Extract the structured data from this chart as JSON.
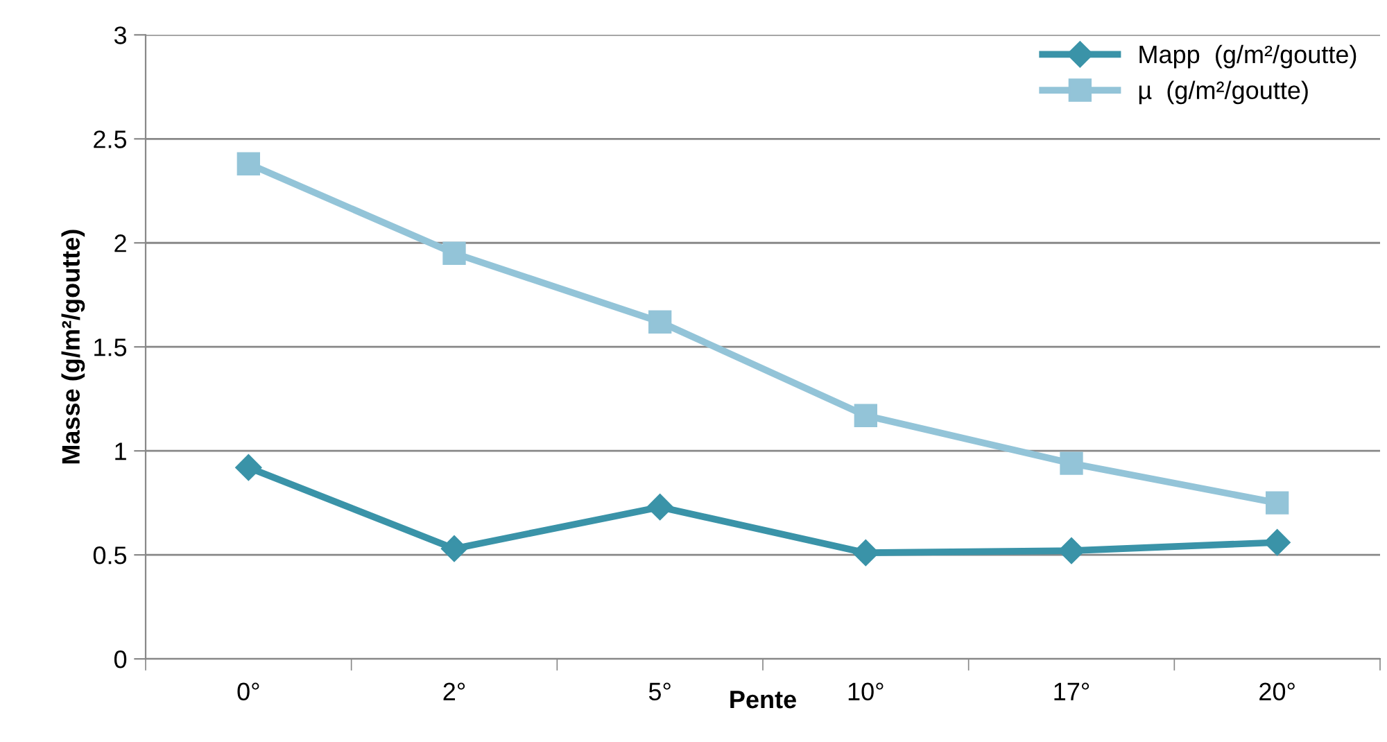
{
  "chart_data": {
    "type": "line",
    "xlabel": "Pente",
    "ylabel": "Masse (g/m²/goutte)",
    "categories": [
      "0°",
      "2°",
      "5°",
      "10°",
      "17°",
      "20°"
    ],
    "series": [
      {
        "name": "Mapp  (g/m²/goutte)",
        "color": "#3a93a8",
        "marker": "diamond",
        "values": [
          0.92,
          0.53,
          0.73,
          0.51,
          0.52,
          0.56
        ]
      },
      {
        "name": "µ  (g/m²/goutte)",
        "color": "#93c4d8",
        "marker": "square",
        "values": [
          2.38,
          1.95,
          1.62,
          1.17,
          0.94,
          0.75
        ]
      }
    ],
    "ylim": [
      0,
      3
    ],
    "yticks": [
      0,
      0.5,
      1,
      1.5,
      2,
      2.5,
      3
    ],
    "grid": "y",
    "legend": "top right",
    "line_style": "solid"
  }
}
